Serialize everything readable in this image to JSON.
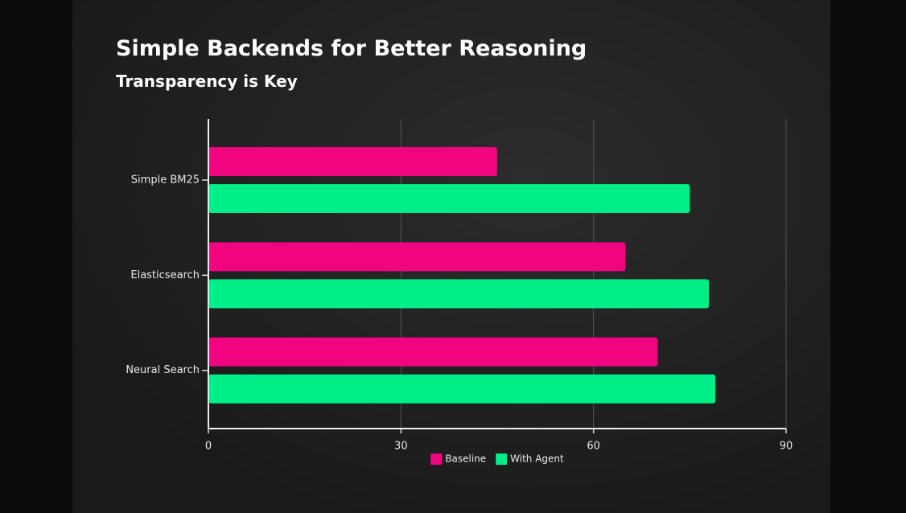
{
  "chart_data": {
    "type": "barh",
    "title": "Simple Backends for Better Reasoning",
    "subtitle": "Transparency is Key",
    "categories": [
      "Simple BM25",
      "Elasticsearch",
      "Neural Search"
    ],
    "series": [
      {
        "name": "Baseline",
        "color": "#f0047f",
        "values": [
          45,
          65,
          70
        ]
      },
      {
        "name": "With Agent",
        "color": "#00ee88",
        "values": [
          75,
          78,
          79
        ]
      }
    ],
    "xlim": [
      0,
      90
    ],
    "xticks": [
      0,
      30,
      60,
      90
    ],
    "grid": true,
    "legend": "bottom"
  }
}
